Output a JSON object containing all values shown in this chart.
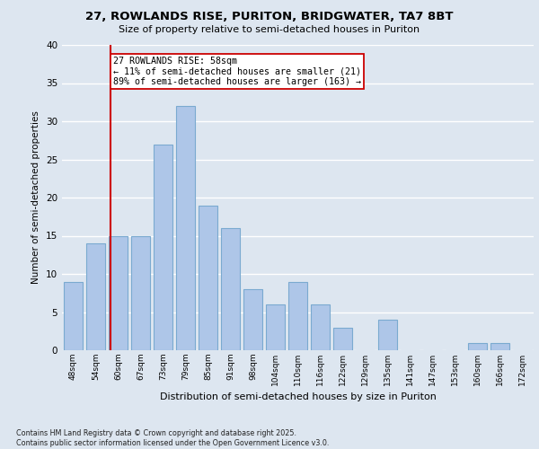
{
  "title1": "27, ROWLANDS RISE, PURITON, BRIDGWATER, TA7 8BT",
  "title2": "Size of property relative to semi-detached houses in Puriton",
  "xlabel": "Distribution of semi-detached houses by size in Puriton",
  "ylabel": "Number of semi-detached properties",
  "footnote1": "Contains HM Land Registry data © Crown copyright and database right 2025.",
  "footnote2": "Contains public sector information licensed under the Open Government Licence v3.0.",
  "annotation_line1": "27 ROWLANDS RISE: 58sqm",
  "annotation_line2": "← 11% of semi-detached houses are smaller (21)",
  "annotation_line3": "89% of semi-detached houses are larger (163) →",
  "bar_labels": [
    "48sqm",
    "54sqm",
    "60sqm",
    "67sqm",
    "73sqm",
    "79sqm",
    "85sqm",
    "91sqm",
    "98sqm",
    "104sqm",
    "110sqm",
    "116sqm",
    "122sqm",
    "129sqm",
    "135sqm",
    "141sqm",
    "147sqm",
    "153sqm",
    "160sqm",
    "166sqm",
    "172sqm"
  ],
  "bar_values": [
    9,
    14,
    15,
    15,
    27,
    32,
    19,
    16,
    8,
    6,
    9,
    6,
    3,
    0,
    4,
    0,
    0,
    0,
    1,
    1,
    0
  ],
  "bar_color": "#aec6e8",
  "bar_edgecolor": "#7aaad0",
  "vline_color": "#cc0000",
  "background_color": "#dde6f0",
  "plot_background": "#dde6f0",
  "grid_color": "#ffffff",
  "ylim": [
    0,
    40
  ],
  "yticks": [
    0,
    5,
    10,
    15,
    20,
    25,
    30,
    35,
    40
  ],
  "fig_width": 6.0,
  "fig_height": 5.0,
  "fig_dpi": 100
}
